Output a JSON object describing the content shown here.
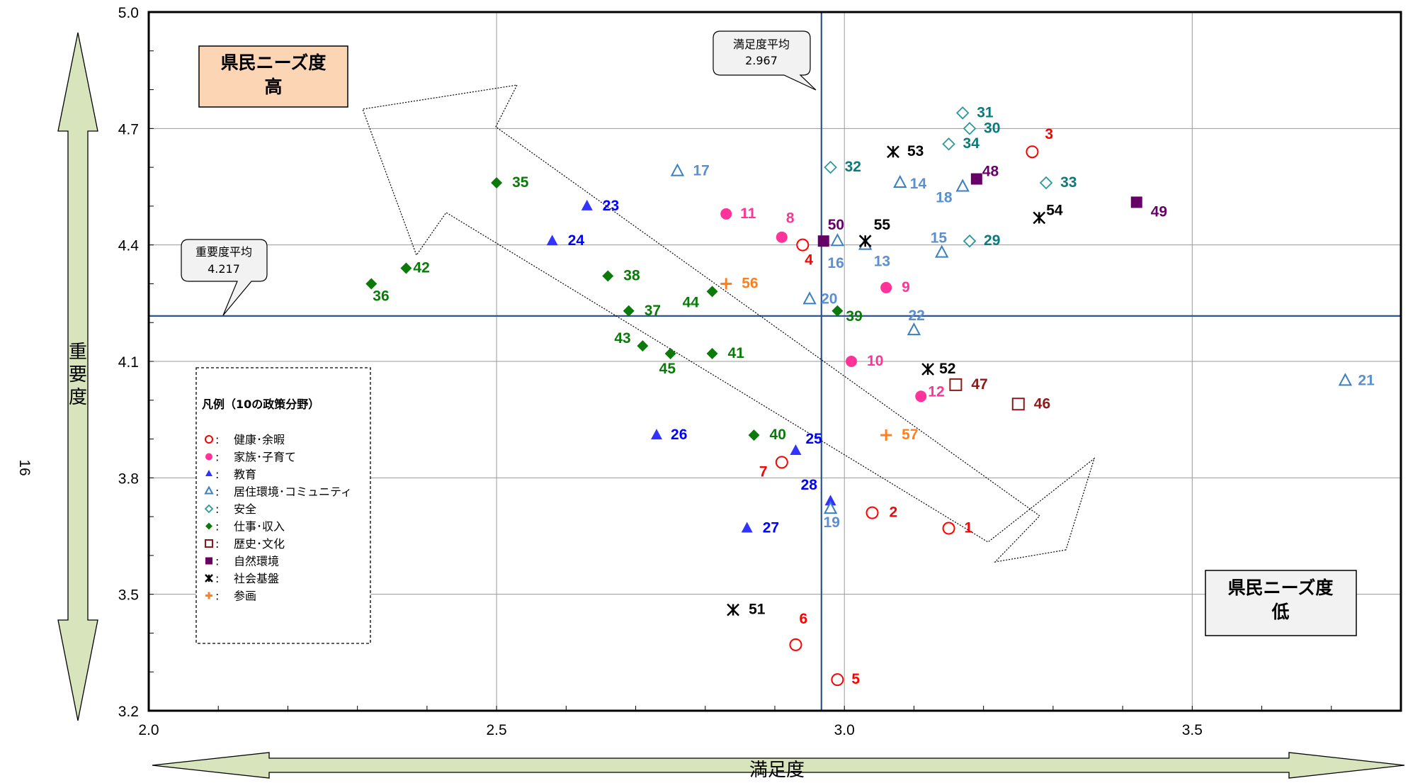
{
  "page_number": "16",
  "chart_data": {
    "type": "scatter",
    "xlabel": "満足度",
    "ylabel": "重要度",
    "xlim": [
      2.0,
      3.8
    ],
    "ylim": [
      3.2,
      5.0
    ],
    "x_ticks": [
      {
        "value": 2.0,
        "label": "2.0"
      },
      {
        "value": 2.5,
        "label": "2.5"
      },
      {
        "value": 3.0,
        "label": "3.0"
      },
      {
        "value": 3.5,
        "label": "3.5"
      }
    ],
    "y_ticks": [
      {
        "value": 3.2,
        "label": "3.2"
      },
      {
        "value": 3.5,
        "label": "3.5"
      },
      {
        "value": 3.8,
        "label": "3.8"
      },
      {
        "value": 4.1,
        "label": "4.1"
      },
      {
        "value": 4.4,
        "label": "4.4"
      },
      {
        "value": 4.7,
        "label": "4.7"
      },
      {
        "value": 5.0,
        "label": "5.0"
      }
    ],
    "grid": true,
    "satisfaction_average": {
      "label": "満足度平均",
      "value": "2.967",
      "x": 2.967
    },
    "importance_average": {
      "label": "重要度平均",
      "value": "4.217",
      "y": 4.217
    },
    "quadrant_high": {
      "line1": "県民ニーズ度",
      "line2": "高"
    },
    "quadrant_low": {
      "line1": "県民ニーズ度",
      "line2": "低"
    },
    "legend": {
      "title": "凡例（10の政策分野）",
      "entries": [
        {
          "name": "健康･余暇",
          "shape": "circle-open",
          "color": "#ff0000"
        },
        {
          "name": "家族･子育て",
          "shape": "circle-filled",
          "color": "#ff3399"
        },
        {
          "name": "教育",
          "shape": "triangle-filled",
          "color": "#3333ff"
        },
        {
          "name": "居住環境･コミュニティ",
          "shape": "triangle-open",
          "color": "#3a7fc1"
        },
        {
          "name": "安全",
          "shape": "diamond-open",
          "color": "#2a9a9a"
        },
        {
          "name": "仕事･収入",
          "shape": "diamond-filled",
          "color": "#0b7a0b"
        },
        {
          "name": "歴史･文化",
          "shape": "square-open",
          "color": "#8b1a1a"
        },
        {
          "name": "自然環境",
          "shape": "square-filled",
          "color": "#660066"
        },
        {
          "name": "社会基盤",
          "shape": "asterisk",
          "color": "#000000"
        },
        {
          "name": "参画",
          "shape": "plus",
          "color": "#ff7f1e"
        }
      ]
    },
    "series": [
      {
        "shape": "circle-open",
        "color": "#ff0000",
        "label_color": "#ff0000",
        "points": [
          {
            "label": "1",
            "x": 3.15,
            "y": 3.67
          },
          {
            "label": "2",
            "x": 3.04,
            "y": 3.71
          },
          {
            "label": "3",
            "x": 3.27,
            "y": 4.64
          },
          {
            "label": "4",
            "x": 2.94,
            "y": 4.4
          },
          {
            "label": "5",
            "x": 2.99,
            "y": 3.28
          },
          {
            "label": "6",
            "x": 2.93,
            "y": 3.37
          },
          {
            "label": "7",
            "x": 2.91,
            "y": 3.84
          }
        ]
      },
      {
        "shape": "circle-filled",
        "color": "#ff3399",
        "label_color": "#ff3399",
        "points": [
          {
            "label": "8",
            "x": 2.91,
            "y": 4.42
          },
          {
            "label": "9",
            "x": 3.06,
            "y": 4.29
          },
          {
            "label": "10",
            "x": 3.01,
            "y": 4.1
          },
          {
            "label": "11",
            "x": 2.83,
            "y": 4.48
          },
          {
            "label": "12",
            "x": 3.11,
            "y": 4.01
          }
        ]
      },
      {
        "shape": "triangle-filled",
        "color": "#3333ff",
        "label_color": "#0000ff",
        "points": [
          {
            "label": "23",
            "x": 2.63,
            "y": 4.5
          },
          {
            "label": "24",
            "x": 2.58,
            "y": 4.41
          },
          {
            "label": "25",
            "x": 2.93,
            "y": 3.87
          },
          {
            "label": "26",
            "x": 2.73,
            "y": 3.91
          },
          {
            "label": "27",
            "x": 2.86,
            "y": 3.67
          },
          {
            "label": "28",
            "x": 2.98,
            "y": 3.74
          }
        ]
      },
      {
        "shape": "triangle-open",
        "color": "#3a7fc1",
        "label_color": "#5b8fd0",
        "points": [
          {
            "label": "13",
            "x": 3.03,
            "y": 4.4
          },
          {
            "label": "14",
            "x": 3.08,
            "y": 4.56
          },
          {
            "label": "15",
            "x": 3.14,
            "y": 4.38
          },
          {
            "label": "16",
            "x": 2.99,
            "y": 4.41
          },
          {
            "label": "17",
            "x": 2.76,
            "y": 4.59
          },
          {
            "label": "18",
            "x": 3.17,
            "y": 4.55
          },
          {
            "label": "19",
            "x": 2.98,
            "y": 3.72
          },
          {
            "label": "20",
            "x": 2.95,
            "y": 4.26
          },
          {
            "label": "21",
            "x": 3.72,
            "y": 4.05
          },
          {
            "label": "22",
            "x": 3.1,
            "y": 4.18
          }
        ]
      },
      {
        "shape": "diamond-open",
        "color": "#2a9a9a",
        "label_color": "#0b7a7a",
        "points": [
          {
            "label": "29",
            "x": 3.18,
            "y": 4.41
          },
          {
            "label": "30",
            "x": 3.18,
            "y": 4.7
          },
          {
            "label": "31",
            "x": 3.17,
            "y": 4.74
          },
          {
            "label": "32",
            "x": 2.98,
            "y": 4.6
          },
          {
            "label": "33",
            "x": 3.29,
            "y": 4.56
          },
          {
            "label": "34",
            "x": 3.15,
            "y": 4.66
          }
        ]
      },
      {
        "shape": "diamond-filled",
        "color": "#0b7a0b",
        "label_color": "#0b7a0b",
        "points": [
          {
            "label": "35",
            "x": 2.5,
            "y": 4.56
          },
          {
            "label": "36",
            "x": 2.32,
            "y": 4.3
          },
          {
            "label": "37",
            "x": 2.69,
            "y": 4.23
          },
          {
            "label": "38",
            "x": 2.66,
            "y": 4.32
          },
          {
            "label": "39",
            "x": 2.99,
            "y": 4.23
          },
          {
            "label": "40",
            "x": 2.87,
            "y": 3.91
          },
          {
            "label": "41",
            "x": 2.81,
            "y": 4.12
          },
          {
            "label": "42",
            "x": 2.37,
            "y": 4.34
          },
          {
            "label": "43",
            "x": 2.71,
            "y": 4.14
          },
          {
            "label": "44",
            "x": 2.81,
            "y": 4.28
          },
          {
            "label": "45",
            "x": 2.75,
            "y": 4.12
          }
        ]
      },
      {
        "shape": "square-open",
        "color": "#8b1a1a",
        "label_color": "#8b1a1a",
        "points": [
          {
            "label": "46",
            "x": 3.25,
            "y": 3.99
          },
          {
            "label": "47",
            "x": 3.16,
            "y": 4.04
          }
        ]
      },
      {
        "shape": "square-filled",
        "color": "#660066",
        "label_color": "#660066",
        "points": [
          {
            "label": "48",
            "x": 3.19,
            "y": 4.57
          },
          {
            "label": "49",
            "x": 3.42,
            "y": 4.51
          },
          {
            "label": "50",
            "x": 2.97,
            "y": 4.41
          }
        ]
      },
      {
        "shape": "asterisk",
        "color": "#000000",
        "label_color": "#000000",
        "points": [
          {
            "label": "51",
            "x": 2.84,
            "y": 3.46
          },
          {
            "label": "52",
            "x": 3.12,
            "y": 4.08
          },
          {
            "label": "53",
            "x": 3.07,
            "y": 4.64
          },
          {
            "label": "54",
            "x": 3.28,
            "y": 4.47
          },
          {
            "label": "55",
            "x": 3.03,
            "y": 4.41
          }
        ]
      },
      {
        "shape": "plus",
        "color": "#ff7f1e",
        "label_color": "#ff7f1e",
        "points": [
          {
            "label": "56",
            "x": 2.83,
            "y": 4.3
          },
          {
            "label": "57",
            "x": 3.06,
            "y": 3.91
          }
        ]
      }
    ]
  }
}
